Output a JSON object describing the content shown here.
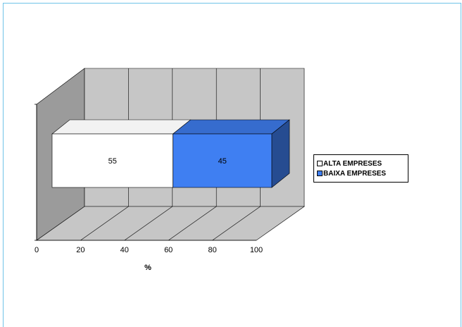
{
  "chart_data": {
    "type": "bar",
    "orientation": "horizontal",
    "stacked": true,
    "style": "3d",
    "categories": [
      ""
    ],
    "series": [
      {
        "name": "ALTA EMPRESES",
        "values": [
          55
        ],
        "color": "#ffffff"
      },
      {
        "name": "BAIXA EMPRESES",
        "values": [
          45
        ],
        "color": "#3f7ff2"
      }
    ],
    "data_labels": [
      "55",
      "45"
    ],
    "xlim": [
      0,
      100
    ],
    "x_ticks": [
      "0",
      "20",
      "40",
      "60",
      "80",
      "100"
    ],
    "xlabel": "%",
    "grid": true,
    "legend_position": "right"
  }
}
